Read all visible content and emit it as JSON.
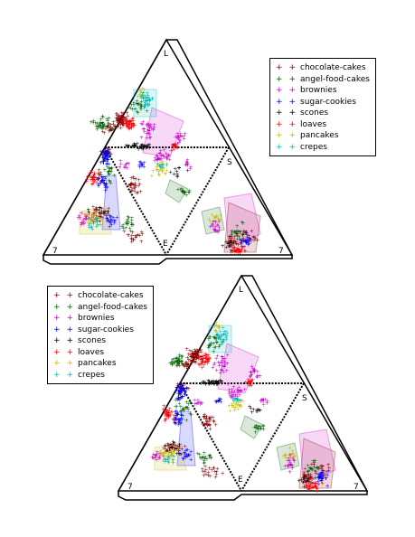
{
  "chart_data": [
    {
      "type": "scatter",
      "projection": "ternary-net",
      "vertex_labels": {
        "top": "L",
        "bottom_left": "7",
        "bottom_right": "7",
        "inner_left": "F",
        "inner_right": "S",
        "inner_bottom": "E"
      },
      "series": [
        {
          "name": "chocolate-cakes",
          "color": "#8b0000"
        },
        {
          "name": "angel-food-cakes",
          "color": "#006400"
        },
        {
          "name": "brownies",
          "color": "#cc00cc"
        },
        {
          "name": "sugar-cookies",
          "color": "#0000ff"
        },
        {
          "name": "scones",
          "color": "#000000"
        },
        {
          "name": "loaves",
          "color": "#ff0000"
        },
        {
          "name": "pancakes",
          "color": "#ccbb00"
        },
        {
          "name": "crepes",
          "color": "#00bbbb"
        }
      ]
    },
    {
      "type": "scatter",
      "projection": "ternary-net",
      "vertex_labels": {
        "top": "L",
        "bottom_left": "7",
        "bottom_right": "7",
        "inner_left": "F",
        "inner_right": "S",
        "inner_bottom": "E"
      },
      "series": [
        {
          "name": "chocolate-cakes",
          "color": "#8b0000"
        },
        {
          "name": "angel-food-cakes",
          "color": "#006400"
        },
        {
          "name": "brownies",
          "color": "#cc00cc"
        },
        {
          "name": "sugar-cookies",
          "color": "#0000ff"
        },
        {
          "name": "scones",
          "color": "#000000"
        },
        {
          "name": "loaves",
          "color": "#ff0000"
        },
        {
          "name": "pancakes",
          "color": "#ccbb00"
        },
        {
          "name": "crepes",
          "color": "#00bbbb"
        }
      ]
    }
  ]
}
